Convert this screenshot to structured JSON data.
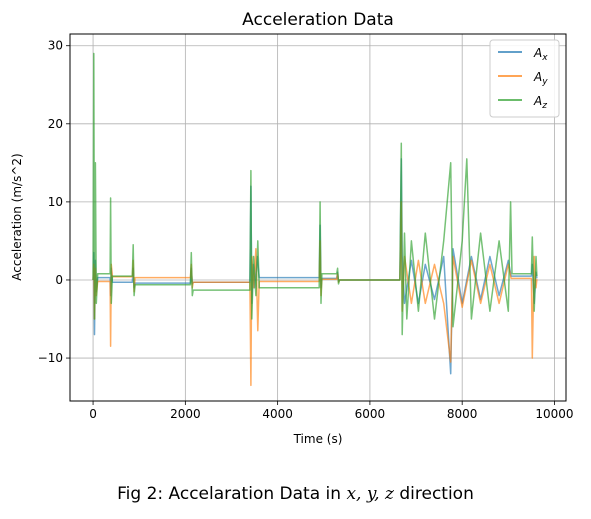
{
  "chart_data": {
    "type": "line",
    "title": "Acceleration Data",
    "xlabel": "Time (s)",
    "ylabel": "Acceleration (m/s^2)",
    "xlim": [
      -500,
      10250
    ],
    "ylim": [
      -15.5,
      31.5
    ],
    "xticks": [
      0,
      2000,
      4000,
      6000,
      8000,
      10000
    ],
    "yticks": [
      -10,
      0,
      10,
      20,
      30
    ],
    "grid": true,
    "legend_position": "top-right",
    "series": [
      {
        "name": "A_x",
        "color": "#1f77b4",
        "points": [
          [
            0,
            0
          ],
          [
            15,
            3.5
          ],
          [
            30,
            -7
          ],
          [
            50,
            2.5
          ],
          [
            70,
            -1.5
          ],
          [
            100,
            0.3
          ],
          [
            370,
            0.3
          ],
          [
            380,
            -2
          ],
          [
            395,
            1.5
          ],
          [
            420,
            -0.3
          ],
          [
            850,
            -0.3
          ],
          [
            870,
            1.5
          ],
          [
            890,
            -1
          ],
          [
            910,
            -0.4
          ],
          [
            2110,
            -0.4
          ],
          [
            2130,
            1.5
          ],
          [
            2150,
            -0.5
          ],
          [
            2170,
            -0.3
          ],
          [
            3400,
            -0.3
          ],
          [
            3420,
            12
          ],
          [
            3440,
            -3
          ],
          [
            3470,
            2
          ],
          [
            3500,
            -1
          ],
          [
            3560,
            3
          ],
          [
            3600,
            0.3
          ],
          [
            4900,
            0.3
          ],
          [
            4920,
            7
          ],
          [
            4940,
            -1
          ],
          [
            4960,
            0.2
          ],
          [
            5280,
            0.2
          ],
          [
            5300,
            1
          ],
          [
            5320,
            -0.2
          ],
          [
            5340,
            0
          ],
          [
            6650,
            0
          ],
          [
            6680,
            15.5
          ],
          [
            6700,
            3
          ],
          [
            6750,
            -3
          ],
          [
            6900,
            2.5
          ],
          [
            7050,
            -3
          ],
          [
            7200,
            2
          ],
          [
            7400,
            -2.5
          ],
          [
            7600,
            3
          ],
          [
            7750,
            -12
          ],
          [
            7800,
            4
          ],
          [
            8000,
            -3
          ],
          [
            8200,
            3
          ],
          [
            8400,
            -2.5
          ],
          [
            8600,
            3
          ],
          [
            8800,
            -2
          ],
          [
            9000,
            2.5
          ],
          [
            9060,
            0.5
          ],
          [
            9500,
            0.5
          ],
          [
            9520,
            2
          ],
          [
            9560,
            -3
          ],
          [
            9600,
            1
          ],
          [
            9620,
            0.2
          ]
        ]
      },
      {
        "name": "A_y",
        "color": "#ff7f0e",
        "points": [
          [
            0,
            0
          ],
          [
            15,
            2
          ],
          [
            30,
            -5
          ],
          [
            50,
            1.5
          ],
          [
            70,
            -2
          ],
          [
            100,
            -0.2
          ],
          [
            370,
            -0.2
          ],
          [
            380,
            -8.5
          ],
          [
            395,
            2
          ],
          [
            420,
            0.4
          ],
          [
            850,
            0.4
          ],
          [
            870,
            2.5
          ],
          [
            890,
            -1.5
          ],
          [
            910,
            0.3
          ],
          [
            2110,
            0.3
          ],
          [
            2130,
            2
          ],
          [
            2150,
            -1
          ],
          [
            2170,
            -0.3
          ],
          [
            3400,
            -0.3
          ],
          [
            3420,
            -13.5
          ],
          [
            3440,
            3
          ],
          [
            3480,
            -1
          ],
          [
            3530,
            4
          ],
          [
            3570,
            -6.5
          ],
          [
            3600,
            -0.2
          ],
          [
            4900,
            -0.2
          ],
          [
            4920,
            5
          ],
          [
            4940,
            -2
          ],
          [
            4960,
            0.1
          ],
          [
            5280,
            0.1
          ],
          [
            5300,
            0.8
          ],
          [
            5320,
            -0.3
          ],
          [
            5340,
            0
          ],
          [
            6650,
            0
          ],
          [
            6680,
            10
          ],
          [
            6700,
            -4
          ],
          [
            6750,
            3
          ],
          [
            6900,
            -3
          ],
          [
            7050,
            2.5
          ],
          [
            7200,
            -3
          ],
          [
            7400,
            2
          ],
          [
            7600,
            -3
          ],
          [
            7750,
            -10.5
          ],
          [
            7800,
            3
          ],
          [
            8000,
            -3.5
          ],
          [
            8200,
            2.5
          ],
          [
            8400,
            -3
          ],
          [
            8600,
            2
          ],
          [
            8800,
            -3
          ],
          [
            9000,
            2
          ],
          [
            9060,
            0.2
          ],
          [
            9500,
            0.2
          ],
          [
            9520,
            -10
          ],
          [
            9560,
            3
          ],
          [
            9600,
            -1
          ],
          [
            9620,
            0.1
          ]
        ]
      },
      {
        "name": "A_z",
        "color": "#2ca02c",
        "points": [
          [
            0,
            0
          ],
          [
            15,
            29
          ],
          [
            30,
            -5
          ],
          [
            50,
            15
          ],
          [
            70,
            -3
          ],
          [
            100,
            0.8
          ],
          [
            370,
            0.8
          ],
          [
            380,
            10.5
          ],
          [
            395,
            -3
          ],
          [
            420,
            0.5
          ],
          [
            850,
            0.5
          ],
          [
            870,
            4.5
          ],
          [
            890,
            -2
          ],
          [
            910,
            -0.6
          ],
          [
            2110,
            -0.6
          ],
          [
            2130,
            3.5
          ],
          [
            2150,
            -2
          ],
          [
            2170,
            -1.3
          ],
          [
            3400,
            -1.3
          ],
          [
            3420,
            14
          ],
          [
            3440,
            -5
          ],
          [
            3480,
            3
          ],
          [
            3530,
            -2
          ],
          [
            3570,
            5
          ],
          [
            3600,
            -1
          ],
          [
            4900,
            -1
          ],
          [
            4920,
            10
          ],
          [
            4940,
            -3
          ],
          [
            4960,
            0.8
          ],
          [
            5280,
            0.8
          ],
          [
            5300,
            1.5
          ],
          [
            5320,
            -0.5
          ],
          [
            5340,
            0
          ],
          [
            6650,
            0
          ],
          [
            6680,
            17.5
          ],
          [
            6700,
            -7
          ],
          [
            6750,
            6
          ],
          [
            6800,
            -5
          ],
          [
            6900,
            5
          ],
          [
            7050,
            -4
          ],
          [
            7200,
            6
          ],
          [
            7400,
            -5
          ],
          [
            7600,
            5
          ],
          [
            7750,
            15
          ],
          [
            7800,
            -6
          ],
          [
            8000,
            5
          ],
          [
            8100,
            15.5
          ],
          [
            8200,
            -5
          ],
          [
            8400,
            6
          ],
          [
            8600,
            -4
          ],
          [
            8800,
            5
          ],
          [
            9000,
            -4
          ],
          [
            9050,
            10
          ],
          [
            9080,
            0.8
          ],
          [
            9500,
            0.8
          ],
          [
            9520,
            5.5
          ],
          [
            9560,
            -4
          ],
          [
            9600,
            3
          ],
          [
            9620,
            0.5
          ]
        ]
      }
    ]
  },
  "caption": {
    "prefix": "Fig 2: Accelaration Data in ",
    "math": "x, y, z",
    "suffix": " direction"
  }
}
